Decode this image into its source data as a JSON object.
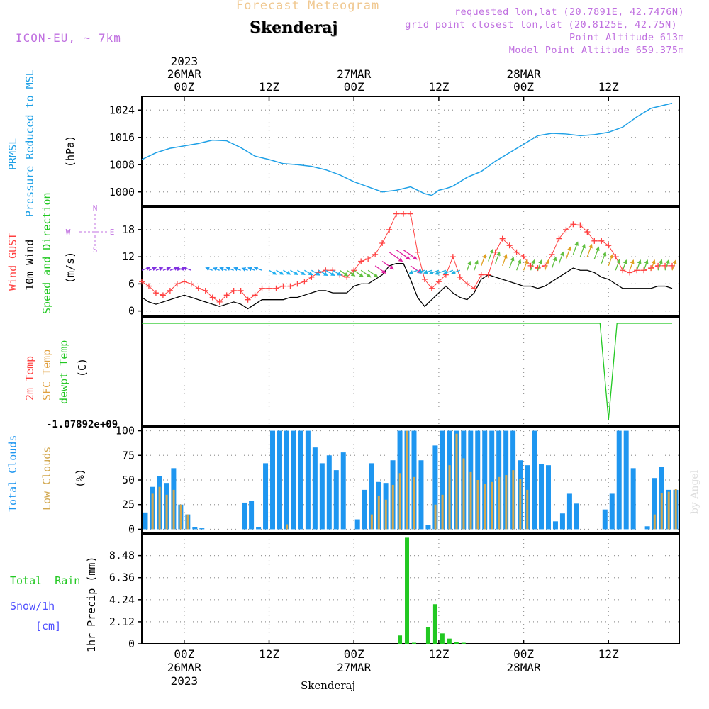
{
  "header": {
    "product": "Forecast Meteogram",
    "location": "Skenderaj",
    "model": "ICON-EU, ~ 7km",
    "requested": "requested lon,lat (20.7891E, 42.7476N)",
    "gridpoint": "grid point closest lon,lat (20.8125E, 42.75N)",
    "point_altitude": "Point Altitude 613m",
    "model_altitude": "Model Point Altitude 659.375m",
    "credit": "by Angel",
    "footer_location": "Skenderaj"
  },
  "colors": {
    "pressure": "#1ea0e6",
    "gust": "#ff4040",
    "wind": "#000000",
    "label_purple": "#c070e0",
    "total_clouds": "#1e96f0",
    "low_clouds": "#d2a850",
    "rain": "#22c822",
    "snow": "#5050ff",
    "dewpt": "#22c822",
    "sfc_temp": "#e0a040",
    "title_orange": "#f0c890"
  },
  "time_axis": {
    "top_labels": [
      {
        "t": 6,
        "lines": [
          "2023",
          "26MAR",
          "00Z"
        ]
      },
      {
        "t": 18,
        "lines": [
          "12Z"
        ]
      },
      {
        "t": 30,
        "lines": [
          "27MAR",
          "00Z"
        ]
      },
      {
        "t": 42,
        "lines": [
          "12Z"
        ]
      },
      {
        "t": 54,
        "lines": [
          "28MAR",
          "00Z"
        ]
      },
      {
        "t": 66,
        "lines": [
          "12Z"
        ]
      }
    ],
    "bottom_labels": [
      {
        "t": 6,
        "lines": [
          "00Z",
          "26MAR",
          "2023"
        ]
      },
      {
        "t": 18,
        "lines": [
          "12Z"
        ]
      },
      {
        "t": 30,
        "lines": [
          "00Z",
          "27MAR"
        ]
      },
      {
        "t": 42,
        "lines": [
          "12Z"
        ]
      },
      {
        "t": 54,
        "lines": [
          "00Z",
          "28MAR"
        ]
      },
      {
        "t": 66,
        "lines": [
          "12Z"
        ]
      }
    ]
  },
  "panels": {
    "pressure": {
      "labels": [
        "PRMSL",
        "Pressure Reduced to MSL",
        "(hPa)"
      ],
      "ticks": [
        "1000",
        "1008",
        "1016",
        "1024"
      ]
    },
    "wind": {
      "labels": [
        "Wind GUST",
        "10m Wind",
        "Speed and Direction",
        "(m/s)"
      ],
      "ticks": [
        "0",
        "6",
        "12",
        "18"
      ],
      "compass": [
        "N",
        "S",
        "W",
        "E"
      ]
    },
    "temp": {
      "labels": [
        "2m Temp",
        "SFC Temp",
        "dewpt Temp",
        "(C)"
      ],
      "min_label": "-1.07892e+09"
    },
    "clouds": {
      "labels": [
        "Total Clouds",
        "Low Clouds",
        "(%)"
      ],
      "ticks": [
        "0",
        "25",
        "50",
        "75",
        "100"
      ]
    },
    "precip": {
      "labels": [
        "Total  Rain",
        "Snow/1h",
        "[cm]",
        "1hr Precip (mm)"
      ],
      "ticks": [
        "0",
        "2.12",
        "4.24",
        "6.36",
        "8.48"
      ]
    }
  },
  "chart_data": [
    {
      "type": "line",
      "name": "PRMSL",
      "x_unit": "hours from 26MAR 18Z (x=6 is 26MAR 00Z... axis runs 0 to 76)",
      "ylim": [
        996,
        1028
      ],
      "x": [
        0,
        2,
        4,
        6,
        8,
        10,
        12,
        14,
        16,
        18,
        20,
        22,
        24,
        26,
        28,
        30,
        32,
        34,
        36,
        38,
        39,
        40,
        41,
        42,
        43,
        44,
        45,
        46,
        48,
        50,
        52,
        54,
        56,
        58,
        60,
        62,
        64,
        66,
        68,
        70,
        72,
        74,
        75
      ],
      "values": [
        1009.5,
        1011.5,
        1012.8,
        1013.5,
        1014.2,
        1015.2,
        1015,
        1013,
        1010.5,
        1009.5,
        1008.3,
        1008,
        1007.5,
        1006.5,
        1005,
        1003,
        1001.5,
        1000,
        1000.5,
        1001.5,
        1000.5,
        999.5,
        999,
        1000.5,
        1001,
        1001.7,
        1003,
        1004.3,
        1006,
        1009,
        1011.5,
        1014,
        1016.5,
        1017.2,
        1017,
        1016.5,
        1016.8,
        1017.5,
        1019,
        1022,
        1024.5,
        1025.5,
        1026
      ]
    },
    {
      "type": "line",
      "name": "Wind GUST",
      "ylim": [
        -1,
        23
      ],
      "x": [
        0,
        1,
        2,
        3,
        4,
        5,
        6,
        7,
        8,
        9,
        10,
        11,
        12,
        13,
        14,
        15,
        16,
        17,
        18,
        19,
        20,
        21,
        22,
        23,
        24,
        25,
        26,
        27,
        28,
        29,
        30,
        31,
        32,
        33,
        34,
        35,
        36,
        37,
        38,
        39,
        40,
        41,
        42,
        43,
        44,
        45,
        46,
        47,
        48,
        49,
        50,
        51,
        52,
        53,
        54,
        55,
        56,
        57,
        58,
        59,
        60,
        61,
        62,
        63,
        64,
        65,
        66,
        67,
        68,
        69,
        70,
        71,
        72,
        73,
        74,
        75
      ],
      "values": [
        6.5,
        5.5,
        4,
        3.5,
        4.5,
        6,
        6.5,
        6,
        5,
        4.5,
        3,
        2,
        3.5,
        4.5,
        4.5,
        2.5,
        3.5,
        5,
        5,
        5,
        5.5,
        5.5,
        6,
        6.5,
        7.5,
        8.5,
        9,
        9,
        8,
        7.5,
        9,
        11,
        11.5,
        12.5,
        15,
        18,
        21.5,
        21.5,
        21.5,
        13,
        7,
        5,
        6.5,
        8,
        12,
        7.5,
        6,
        5,
        8,
        8,
        13,
        16,
        14.5,
        13,
        12,
        10,
        9.5,
        10,
        12.5,
        16,
        18,
        19.2,
        19,
        17.5,
        15.5,
        15.5,
        14.5,
        12,
        9,
        8.5,
        9,
        9,
        9.5,
        10,
        10,
        10
      ]
    },
    {
      "type": "line",
      "name": "10m Wind",
      "ylim": [
        -1,
        23
      ],
      "x": [
        0,
        1,
        2,
        3,
        4,
        5,
        6,
        7,
        8,
        9,
        10,
        11,
        12,
        13,
        14,
        15,
        16,
        17,
        18,
        19,
        20,
        21,
        22,
        23,
        24,
        25,
        26,
        27,
        28,
        29,
        30,
        31,
        32,
        33,
        34,
        35,
        36,
        37,
        38,
        39,
        40,
        41,
        42,
        43,
        44,
        45,
        46,
        47,
        48,
        49,
        50,
        51,
        52,
        53,
        54,
        55,
        56,
        57,
        58,
        59,
        60,
        61,
        62,
        63,
        64,
        65,
        66,
        67,
        68,
        69,
        70,
        71,
        72,
        73,
        74,
        75
      ],
      "values": [
        3,
        2,
        1.5,
        2,
        2.5,
        3,
        3.5,
        3,
        2.5,
        2,
        1.5,
        1,
        1.5,
        2,
        1.5,
        0.5,
        1.5,
        2.5,
        2.5,
        2.5,
        2.5,
        3,
        3,
        3.5,
        4,
        4.5,
        4.5,
        4,
        4,
        4,
        5.5,
        6,
        6,
        7,
        8,
        10,
        10.5,
        10.5,
        7,
        3,
        1,
        2.5,
        4,
        5.5,
        4,
        3,
        2.5,
        4,
        7,
        8,
        7.5,
        7,
        6.5,
        6,
        5.5,
        5.5,
        5,
        5.5,
        6.5,
        7.5,
        8.5,
        9.5,
        9,
        9,
        8.5,
        7.5,
        7,
        6,
        5,
        5,
        5,
        5,
        5,
        5.5,
        5.5,
        5
      ]
    },
    {
      "type": "bar",
      "name": "Total Clouds",
      "ylim": [
        0,
        100
      ],
      "x": [
        0,
        1,
        2,
        3,
        4,
        5,
        6,
        7,
        8,
        9,
        10,
        11,
        12,
        13,
        14,
        15,
        16,
        17,
        18,
        19,
        20,
        21,
        22,
        23,
        24,
        25,
        26,
        27,
        28,
        29,
        30,
        31,
        32,
        33,
        34,
        35,
        36,
        37,
        38,
        39,
        40,
        41,
        42,
        43,
        44,
        45,
        46,
        47,
        48,
        49,
        50,
        51,
        52,
        53,
        54,
        55,
        56,
        57,
        58,
        59,
        60,
        61,
        62,
        63,
        64,
        65,
        66,
        67,
        68,
        69,
        70,
        71,
        72,
        73,
        74,
        75
      ],
      "values": [
        17,
        43,
        54,
        47,
        62,
        25,
        15,
        2,
        1,
        0,
        0,
        0,
        0,
        0,
        27,
        29,
        2,
        67,
        100,
        100,
        100,
        100,
        100,
        100,
        83,
        67,
        75,
        60,
        78,
        0,
        10,
        40,
        67,
        48,
        47,
        70,
        100,
        100,
        100,
        70,
        4,
        85,
        100,
        100,
        100,
        100,
        100,
        100,
        100,
        100,
        100,
        100,
        100,
        70,
        65,
        100,
        66,
        65,
        8,
        16,
        36,
        26,
        0,
        0,
        0,
        20,
        36,
        100,
        100,
        62,
        0,
        3,
        52,
        63,
        40,
        40
      ]
    },
    {
      "type": "bar",
      "name": "Low Clouds",
      "ylim": [
        0,
        100
      ],
      "values": [
        0,
        36,
        43,
        35,
        40,
        25,
        15,
        0,
        0,
        0,
        0,
        0,
        0,
        0,
        0,
        0,
        0,
        0,
        0,
        0,
        5,
        0,
        0,
        0,
        0,
        0,
        0,
        0,
        0,
        0,
        0,
        0,
        15,
        34,
        30,
        45,
        57,
        100,
        53,
        0,
        0,
        25,
        35,
        65,
        97,
        72,
        58,
        50,
        46,
        48,
        53,
        55,
        60,
        51,
        40,
        0,
        0,
        0,
        0,
        0,
        0,
        0,
        0,
        0,
        0,
        0,
        0,
        0,
        0,
        0,
        0,
        0,
        15,
        37,
        38,
        41
      ]
    },
    {
      "type": "bar",
      "name": "1hr Precip",
      "ylim": [
        0,
        10.5
      ],
      "x": [
        36,
        37,
        38,
        40,
        41,
        42,
        43,
        44,
        45
      ],
      "values": [
        0.8,
        10.2,
        0.1,
        1.6,
        3.8,
        1,
        0.5,
        0.2,
        0.1
      ]
    },
    {
      "type": "line",
      "name": "dewpt Temp",
      "x": [
        0,
        64,
        65,
        66,
        67,
        75
      ],
      "values": [
        "flat",
        "flat",
        "drop",
        "min",
        "flat",
        "flat"
      ]
    }
  ]
}
